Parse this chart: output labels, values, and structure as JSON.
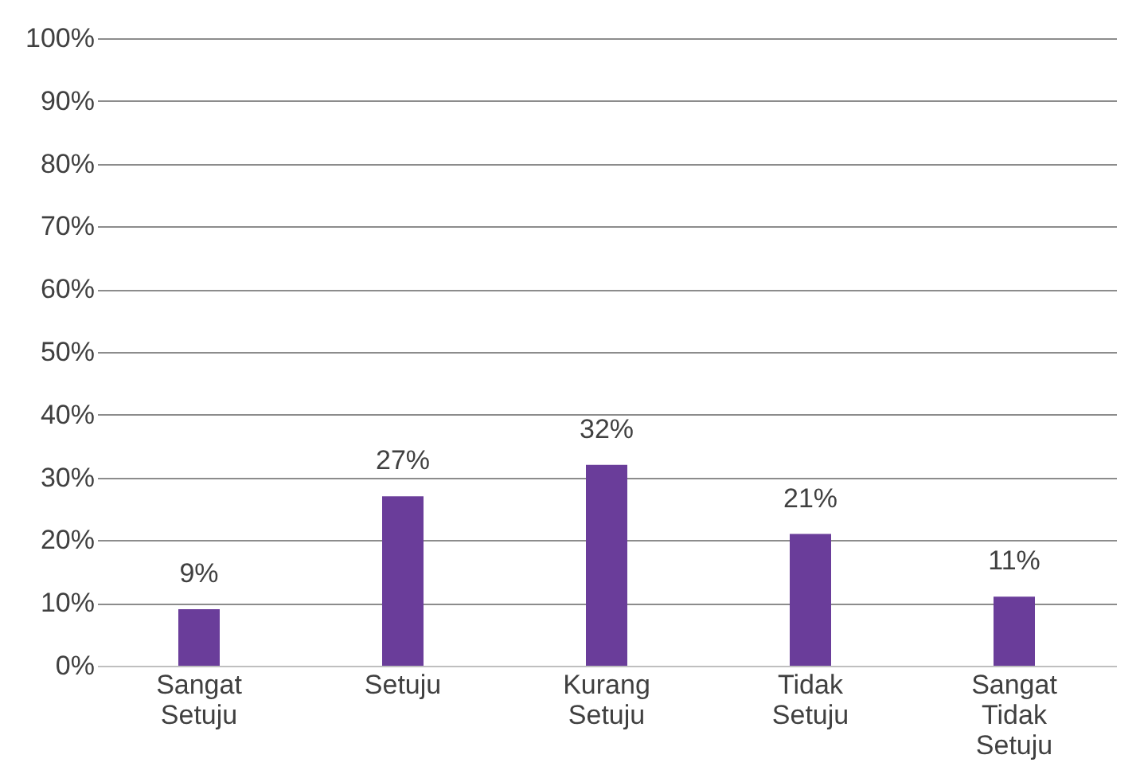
{
  "chart_data": {
    "type": "bar",
    "categories": [
      "Sangat Setuju",
      "Setuju",
      "Kurang Setuju",
      "Tidak Setuju",
      "Sangat Tidak Setuju"
    ],
    "values": [
      9,
      27,
      32,
      21,
      11
    ],
    "value_labels": [
      "9%",
      "27%",
      "32%",
      "21%",
      "11%"
    ],
    "color": "#6a3d9a",
    "ylim": [
      0,
      100
    ],
    "yticks": [
      {
        "value": 0,
        "label": "0%"
      },
      {
        "value": 10,
        "label": "10%"
      },
      {
        "value": 20,
        "label": "20%"
      },
      {
        "value": 30,
        "label": "30%"
      },
      {
        "value": 40,
        "label": "40%"
      },
      {
        "value": 50,
        "label": "50%"
      },
      {
        "value": 60,
        "label": "60%"
      },
      {
        "value": 70,
        "label": "70%"
      },
      {
        "value": 80,
        "label": "80%"
      },
      {
        "value": 90,
        "label": "90%"
      },
      {
        "value": 100,
        "label": "100%"
      }
    ],
    "grid": "y"
  }
}
